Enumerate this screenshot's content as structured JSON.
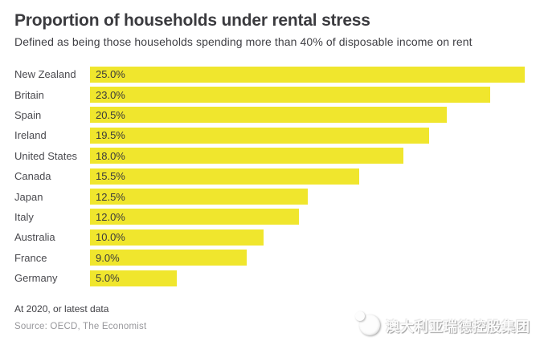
{
  "header": {
    "title": "Proportion of households under rental stress",
    "subtitle": "Defined as being those households spending more than 40% of disposable income on rent"
  },
  "chart_data": {
    "type": "bar",
    "orientation": "horizontal",
    "title": "Proportion of households under rental stress",
    "subtitle": "Defined as being those households spending more than 40% of disposable income on rent",
    "categories": [
      "New Zealand",
      "Britain",
      "Spain",
      "Ireland",
      "United States",
      "Canada",
      "Japan",
      "Italy",
      "Australia",
      "France",
      "Germany"
    ],
    "values": [
      25.0,
      23.0,
      20.5,
      19.5,
      18.0,
      15.5,
      12.5,
      12.0,
      10.0,
      9.0,
      5.0
    ],
    "value_labels": [
      "25.0%",
      "23.0%",
      "20.5%",
      "19.5%",
      "18.0%",
      "15.5%",
      "12.5%",
      "12.0%",
      "10.0%",
      "9.0%",
      "5.0%"
    ],
    "xlim": [
      0,
      25
    ],
    "grid": false,
    "legend": false,
    "bar_color": "#F0E62D",
    "value_label_position": "inside-left"
  },
  "footer": {
    "note": "At 2020, or latest data",
    "source": "Source: OECD, The Economist"
  },
  "watermark": {
    "logo_icon": "company-logo-icon",
    "text": "澳大利亚瑞德控股集团"
  }
}
